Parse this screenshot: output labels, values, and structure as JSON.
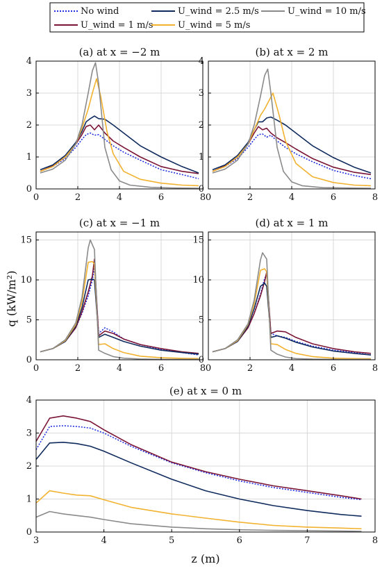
{
  "figure": {
    "ylabel": "q (kW/m²)",
    "xlabel": "z (m)"
  },
  "legend": {
    "placement": "top",
    "entries": [
      {
        "label": "No wind",
        "series": "No wind"
      },
      {
        "label": "U_wind = 2.5 m/s",
        "series": "U_wind = 2.5 m/s"
      },
      {
        "label": "U_wind = 10 m/s",
        "series": "U_wind = 10 m/s"
      },
      {
        "label": "U_wind = 1 m/s",
        "series": "U_wind = 1 m/s"
      },
      {
        "label": "U_wind = 5 m/s",
        "series": "U_wind = 5 m/s"
      }
    ]
  },
  "series_styles": [
    {
      "name": "No wind",
      "color": "#1f2ee0",
      "dash": "dotted"
    },
    {
      "name": "U_wind = 1 m/s",
      "color": "#7a1435",
      "dash": "solid"
    },
    {
      "name": "U_wind = 2.5 m/s",
      "color": "#0f2a5c",
      "dash": "solid"
    },
    {
      "name": "U_wind = 5 m/s",
      "color": "#f2b22f",
      "dash": "solid"
    },
    {
      "name": "U_wind = 10 m/s",
      "color": "#8a8a8a",
      "dash": "solid"
    }
  ],
  "chart_data": [
    {
      "type": "line",
      "title": "(a) at x = −2 m",
      "xlim": [
        0,
        8
      ],
      "ylim": [
        0,
        4
      ],
      "xticks": [
        0,
        2,
        4,
        6,
        8
      ],
      "yticks": [
        0,
        1,
        2,
        3,
        4
      ],
      "grid": true,
      "series": [
        {
          "name": "No wind",
          "x": [
            0.2,
            0.8,
            1.4,
            1.9,
            2.2,
            2.4,
            2.6,
            2.8,
            3.0,
            3.3,
            3.7,
            4.2,
            5.0,
            6.0,
            7.0,
            7.8
          ],
          "y": [
            0.55,
            0.7,
            0.95,
            1.3,
            1.55,
            1.7,
            1.75,
            1.68,
            1.7,
            1.55,
            1.35,
            1.15,
            0.9,
            0.6,
            0.45,
            0.32
          ]
        },
        {
          "name": "U_wind = 1 m/s",
          "x": [
            0.2,
            0.8,
            1.4,
            1.9,
            2.2,
            2.4,
            2.6,
            2.8,
            3.0,
            3.3,
            3.7,
            4.2,
            5.0,
            6.0,
            7.0,
            7.8
          ],
          "y": [
            0.55,
            0.72,
            1.0,
            1.4,
            1.7,
            1.95,
            2.0,
            1.85,
            2.0,
            1.75,
            1.5,
            1.3,
            1.0,
            0.7,
            0.55,
            0.48
          ]
        },
        {
          "name": "U_wind = 2.5 m/s",
          "x": [
            0.2,
            0.8,
            1.4,
            1.9,
            2.2,
            2.4,
            2.6,
            2.8,
            3.0,
            3.3,
            3.7,
            4.2,
            5.0,
            6.0,
            7.0,
            7.8
          ],
          "y": [
            0.6,
            0.75,
            1.05,
            1.45,
            1.8,
            2.1,
            2.2,
            2.28,
            2.2,
            2.18,
            2.0,
            1.75,
            1.35,
            1.0,
            0.7,
            0.5
          ]
        },
        {
          "name": "U_wind = 5 m/s",
          "x": [
            0.2,
            0.8,
            1.4,
            1.9,
            2.2,
            2.5,
            2.7,
            2.9,
            3.1,
            3.4,
            3.7,
            4.2,
            5.0,
            6.0,
            7.0,
            7.8
          ],
          "y": [
            0.55,
            0.7,
            1.0,
            1.4,
            1.9,
            2.5,
            3.0,
            3.45,
            2.9,
            1.8,
            1.1,
            0.55,
            0.3,
            0.18,
            0.12,
            0.1
          ]
        },
        {
          "name": "U_wind = 10 m/s",
          "x": [
            0.2,
            0.8,
            1.4,
            1.9,
            2.2,
            2.5,
            2.7,
            2.85,
            3.0,
            3.3,
            3.6,
            4.0,
            4.5,
            5.5,
            6.5,
            7.8
          ],
          "y": [
            0.5,
            0.62,
            0.9,
            1.4,
            2.0,
            3.0,
            3.7,
            3.95,
            3.3,
            1.3,
            0.6,
            0.25,
            0.12,
            0.05,
            0.03,
            0.02
          ]
        }
      ]
    },
    {
      "type": "line",
      "title": "(b) at x = 2 m",
      "xlim": [
        0,
        8
      ],
      "ylim": [
        0,
        4
      ],
      "xticks": [
        0,
        2,
        4,
        6,
        8
      ],
      "yticks": [
        0,
        1,
        2,
        3,
        4
      ],
      "grid": true,
      "series": [
        {
          "name": "No wind",
          "x": [
            0.2,
            0.8,
            1.4,
            1.9,
            2.2,
            2.4,
            2.6,
            2.8,
            3.0,
            3.3,
            3.7,
            4.2,
            5.0,
            6.0,
            7.0,
            7.8
          ],
          "y": [
            0.55,
            0.7,
            0.95,
            1.3,
            1.55,
            1.7,
            1.72,
            1.62,
            1.68,
            1.5,
            1.3,
            1.1,
            0.85,
            0.58,
            0.42,
            0.32
          ]
        },
        {
          "name": "U_wind = 1 m/s",
          "x": [
            0.2,
            0.8,
            1.4,
            1.9,
            2.2,
            2.4,
            2.6,
            2.8,
            3.0,
            3.3,
            3.7,
            4.2,
            5.0,
            6.0,
            7.0,
            7.8
          ],
          "y": [
            0.55,
            0.72,
            1.0,
            1.4,
            1.75,
            1.95,
            1.85,
            1.9,
            1.75,
            1.6,
            1.45,
            1.25,
            0.95,
            0.68,
            0.52,
            0.45
          ]
        },
        {
          "name": "U_wind = 2.5 m/s",
          "x": [
            0.2,
            0.8,
            1.4,
            1.9,
            2.2,
            2.4,
            2.6,
            2.8,
            3.0,
            3.3,
            3.7,
            4.2,
            5.0,
            6.0,
            7.0,
            7.8
          ],
          "y": [
            0.6,
            0.75,
            1.05,
            1.45,
            1.85,
            2.1,
            2.1,
            2.22,
            2.25,
            2.15,
            2.0,
            1.75,
            1.35,
            0.98,
            0.68,
            0.5
          ]
        },
        {
          "name": "U_wind = 5 m/s",
          "x": [
            0.2,
            0.8,
            1.4,
            1.9,
            2.2,
            2.5,
            2.7,
            2.9,
            3.1,
            3.4,
            3.7,
            4.2,
            5.0,
            6.0,
            7.0,
            7.8
          ],
          "y": [
            0.55,
            0.7,
            1.0,
            1.4,
            1.85,
            2.3,
            2.5,
            2.75,
            3.0,
            2.3,
            1.5,
            0.8,
            0.38,
            0.2,
            0.12,
            0.1
          ]
        },
        {
          "name": "U_wind = 10 m/s",
          "x": [
            0.2,
            0.8,
            1.4,
            1.9,
            2.2,
            2.5,
            2.7,
            2.85,
            3.0,
            3.3,
            3.6,
            4.0,
            4.5,
            5.5,
            6.5,
            7.8
          ],
          "y": [
            0.5,
            0.62,
            0.9,
            1.4,
            2.0,
            2.9,
            3.55,
            3.75,
            3.0,
            1.3,
            0.55,
            0.22,
            0.1,
            0.04,
            0.03,
            0.02
          ]
        }
      ]
    },
    {
      "type": "line",
      "title": "(c) at x = −1 m",
      "xlim": [
        0,
        8
      ],
      "ylim": [
        0,
        16
      ],
      "xticks": [
        0,
        2,
        4,
        6,
        8
      ],
      "yticks": [
        0,
        5,
        10,
        15
      ],
      "grid": true,
      "series": [
        {
          "name": "No wind",
          "x": [
            0.2,
            0.8,
            1.4,
            1.9,
            2.2,
            2.5,
            2.7,
            2.8,
            3.0,
            3.3,
            3.7,
            4.2,
            5.0,
            6.0,
            7.0,
            7.8
          ],
          "y": [
            1.0,
            1.4,
            2.3,
            4.0,
            5.8,
            8.0,
            10.0,
            11.5,
            3.3,
            4.0,
            3.5,
            2.6,
            1.9,
            1.3,
            0.9,
            0.6
          ]
        },
        {
          "name": "U_wind = 1 m/s",
          "x": [
            0.2,
            0.8,
            1.4,
            1.9,
            2.2,
            2.5,
            2.7,
            2.8,
            3.0,
            3.3,
            3.7,
            4.2,
            5.0,
            6.0,
            7.0,
            7.8
          ],
          "y": [
            1.0,
            1.4,
            2.3,
            4.0,
            6.0,
            8.5,
            10.5,
            12.6,
            3.0,
            3.6,
            3.3,
            2.6,
            1.9,
            1.4,
            1.0,
            0.8
          ]
        },
        {
          "name": "U_wind = 2.5 m/s",
          "x": [
            0.2,
            0.8,
            1.4,
            1.9,
            2.2,
            2.5,
            2.7,
            2.8,
            3.0,
            3.3,
            3.7,
            4.2,
            5.0,
            6.0,
            7.0,
            7.8
          ],
          "y": [
            1.0,
            1.4,
            2.3,
            4.2,
            6.5,
            10.0,
            10.1,
            10.0,
            2.8,
            3.2,
            2.8,
            2.3,
            1.7,
            1.2,
            0.9,
            0.7
          ]
        },
        {
          "name": "U_wind = 5 m/s",
          "x": [
            0.2,
            0.8,
            1.4,
            1.9,
            2.2,
            2.5,
            2.7,
            2.8,
            3.0,
            3.3,
            3.7,
            4.2,
            5.0,
            6.0,
            7.0,
            7.8
          ],
          "y": [
            1.0,
            1.4,
            2.4,
            4.4,
            7.2,
            12.2,
            12.3,
            12.0,
            1.9,
            2.0,
            1.4,
            0.9,
            0.45,
            0.25,
            0.18,
            0.15
          ]
        },
        {
          "name": "U_wind = 10 m/s",
          "x": [
            0.2,
            0.8,
            1.4,
            1.9,
            2.2,
            2.5,
            2.6,
            2.8,
            3.0,
            3.3,
            3.7,
            4.2,
            5.0,
            6.0,
            7.0,
            7.8
          ],
          "y": [
            1.0,
            1.4,
            2.5,
            4.6,
            7.8,
            14.0,
            15.0,
            13.8,
            1.2,
            0.8,
            0.4,
            0.2,
            0.1,
            0.05,
            0.05,
            0.05
          ]
        }
      ]
    },
    {
      "type": "line",
      "title": "(d) at x = 1 m",
      "xlim": [
        0,
        8
      ],
      "ylim": [
        0,
        16
      ],
      "xticks": [
        0,
        2,
        4,
        6,
        8
      ],
      "yticks": [
        0,
        5,
        10,
        15
      ],
      "grid": true,
      "series": [
        {
          "name": "No wind",
          "x": [
            0.2,
            0.8,
            1.4,
            1.9,
            2.2,
            2.5,
            2.7,
            2.8,
            3.0,
            3.3,
            3.7,
            4.2,
            5.0,
            6.0,
            7.0,
            7.8
          ],
          "y": [
            1.0,
            1.4,
            2.3,
            4.0,
            5.8,
            8.2,
            10.2,
            10.6,
            3.3,
            3.0,
            2.8,
            2.3,
            1.7,
            1.2,
            0.9,
            0.6
          ]
        },
        {
          "name": "U_wind = 1 m/s",
          "x": [
            0.2,
            0.8,
            1.4,
            1.9,
            2.2,
            2.5,
            2.7,
            2.8,
            3.0,
            3.3,
            3.7,
            4.2,
            5.0,
            6.0,
            7.0,
            7.8
          ],
          "y": [
            1.0,
            1.4,
            2.3,
            4.0,
            5.8,
            8.0,
            9.8,
            11.0,
            3.3,
            3.6,
            3.5,
            2.8,
            2.0,
            1.4,
            1.0,
            0.8
          ]
        },
        {
          "name": "U_wind = 2.5 m/s",
          "x": [
            0.2,
            0.8,
            1.4,
            1.9,
            2.2,
            2.5,
            2.7,
            2.8,
            3.0,
            3.3,
            3.7,
            4.2,
            5.0,
            6.0,
            7.0,
            7.8
          ],
          "y": [
            1.0,
            1.4,
            2.3,
            4.2,
            6.4,
            9.2,
            9.6,
            9.2,
            2.8,
            3.0,
            2.7,
            2.2,
            1.6,
            1.1,
            0.8,
            0.6
          ]
        },
        {
          "name": "U_wind = 5 m/s",
          "x": [
            0.2,
            0.8,
            1.4,
            1.9,
            2.2,
            2.5,
            2.7,
            2.8,
            3.0,
            3.3,
            3.7,
            4.2,
            5.0,
            6.0,
            7.0,
            7.8
          ],
          "y": [
            1.0,
            1.4,
            2.4,
            4.4,
            7.0,
            11.2,
            11.4,
            11.0,
            2.0,
            1.9,
            1.3,
            0.8,
            0.4,
            0.2,
            0.15,
            0.12
          ]
        },
        {
          "name": "U_wind = 10 m/s",
          "x": [
            0.2,
            0.8,
            1.4,
            1.9,
            2.2,
            2.5,
            2.6,
            2.8,
            3.0,
            3.3,
            3.7,
            4.2,
            5.0,
            6.0,
            7.0,
            7.8
          ],
          "y": [
            1.0,
            1.4,
            2.5,
            4.5,
            7.5,
            12.5,
            13.4,
            12.6,
            1.2,
            0.7,
            0.35,
            0.15,
            0.08,
            0.05,
            0.05,
            0.05
          ]
        }
      ]
    },
    {
      "type": "line",
      "title": "(e) at x = 0 m",
      "xlim": [
        3,
        8
      ],
      "ylim": [
        0,
        4
      ],
      "xticks": [
        3,
        4,
        5,
        6,
        7,
        8
      ],
      "yticks": [
        0,
        1,
        2,
        3,
        4
      ],
      "grid": true,
      "series": [
        {
          "name": "No wind",
          "x": [
            3.0,
            3.2,
            3.4,
            3.6,
            3.8,
            4.0,
            4.4,
            5.0,
            5.5,
            6.0,
            6.5,
            7.0,
            7.5,
            7.8
          ],
          "y": [
            2.5,
            3.2,
            3.22,
            3.2,
            3.15,
            3.0,
            2.6,
            2.1,
            1.8,
            1.55,
            1.35,
            1.2,
            1.05,
            0.98
          ]
        },
        {
          "name": "U_wind = 1 m/s",
          "x": [
            3.0,
            3.2,
            3.4,
            3.6,
            3.8,
            4.0,
            4.4,
            5.0,
            5.5,
            6.0,
            6.5,
            7.0,
            7.5,
            7.8
          ],
          "y": [
            2.75,
            3.45,
            3.52,
            3.45,
            3.35,
            3.1,
            2.65,
            2.12,
            1.83,
            1.6,
            1.4,
            1.25,
            1.1,
            1.0
          ]
        },
        {
          "name": "U_wind = 2.5 m/s",
          "x": [
            3.0,
            3.2,
            3.4,
            3.6,
            3.8,
            4.0,
            4.4,
            5.0,
            5.5,
            6.0,
            6.5,
            7.0,
            7.5,
            7.8
          ],
          "y": [
            2.2,
            2.7,
            2.72,
            2.68,
            2.6,
            2.45,
            2.1,
            1.6,
            1.25,
            1.0,
            0.8,
            0.65,
            0.53,
            0.48
          ]
        },
        {
          "name": "U_wind = 5 m/s",
          "x": [
            3.0,
            3.2,
            3.4,
            3.6,
            3.8,
            4.0,
            4.4,
            5.0,
            5.5,
            6.0,
            6.5,
            7.0,
            7.5,
            7.8
          ],
          "y": [
            0.88,
            1.25,
            1.18,
            1.12,
            1.1,
            0.98,
            0.75,
            0.55,
            0.42,
            0.3,
            0.2,
            0.15,
            0.12,
            0.1
          ]
        },
        {
          "name": "U_wind = 10 m/s",
          "x": [
            3.0,
            3.2,
            3.4,
            3.6,
            3.8,
            4.0,
            4.4,
            5.0,
            5.5,
            6.0,
            6.5,
            7.0,
            7.5,
            7.8
          ],
          "y": [
            0.45,
            0.62,
            0.55,
            0.5,
            0.45,
            0.38,
            0.25,
            0.15,
            0.1,
            0.07,
            0.05,
            0.04,
            0.03,
            0.02
          ]
        }
      ]
    }
  ]
}
